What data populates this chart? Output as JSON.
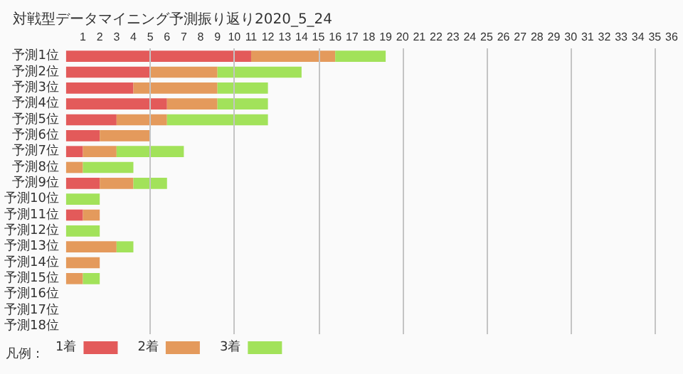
{
  "chart_data": {
    "type": "bar",
    "orientation": "horizontal",
    "stacked": true,
    "title": "対戦型データマイニング予測振り返り2020_5_24",
    "categories": [
      "予測1位",
      "予測2位",
      "予測3位",
      "予測4位",
      "予測5位",
      "予測6位",
      "予測7位",
      "予測8位",
      "予測9位",
      "予測10位",
      "予測11位",
      "予測12位",
      "予測13位",
      "予測14位",
      "予測15位",
      "予測16位",
      "予測17位",
      "予測18位"
    ],
    "series": [
      {
        "name": "1着",
        "color": "#e35a5a",
        "values": [
          11,
          5,
          4,
          6,
          3,
          2,
          1,
          0,
          2,
          0,
          1,
          0,
          0,
          0,
          0,
          0,
          0,
          0
        ]
      },
      {
        "name": "2着",
        "color": "#e49a5c",
        "values": [
          5,
          4,
          5,
          3,
          3,
          3,
          2,
          1,
          2,
          0,
          1,
          0,
          3,
          2,
          1,
          0,
          0,
          0
        ]
      },
      {
        "name": "3着",
        "color": "#a2e25a",
        "values": [
          3,
          5,
          3,
          3,
          6,
          0,
          4,
          3,
          2,
          2,
          0,
          2,
          1,
          0,
          1,
          0,
          0,
          0
        ]
      }
    ],
    "xlim": [
      0,
      36
    ],
    "xticks": [
      1,
      2,
      3,
      4,
      5,
      6,
      7,
      8,
      9,
      10,
      11,
      12,
      13,
      14,
      15,
      16,
      17,
      18,
      19,
      20,
      21,
      22,
      23,
      24,
      25,
      26,
      27,
      28,
      29,
      30,
      31,
      32,
      33,
      34,
      35,
      36
    ],
    "ref_lines": [
      {
        "axis": "x",
        "value": 5,
        "color": "#c4c4c4"
      },
      {
        "axis": "x",
        "value": 10,
        "color": "#c4c4c4"
      },
      {
        "axis": "x",
        "value": 15,
        "color": "#c4c4c4"
      },
      {
        "axis": "x",
        "value": 20,
        "color": "#c4c4c4"
      },
      {
        "axis": "x",
        "value": 25,
        "color": "#c4c4c4"
      },
      {
        "axis": "x",
        "value": 30,
        "color": "#c4c4c4"
      },
      {
        "axis": "x",
        "value": 35,
        "color": "#c4c4c4"
      }
    ],
    "legend": "bottom left",
    "legend_title": "凡例："
  }
}
